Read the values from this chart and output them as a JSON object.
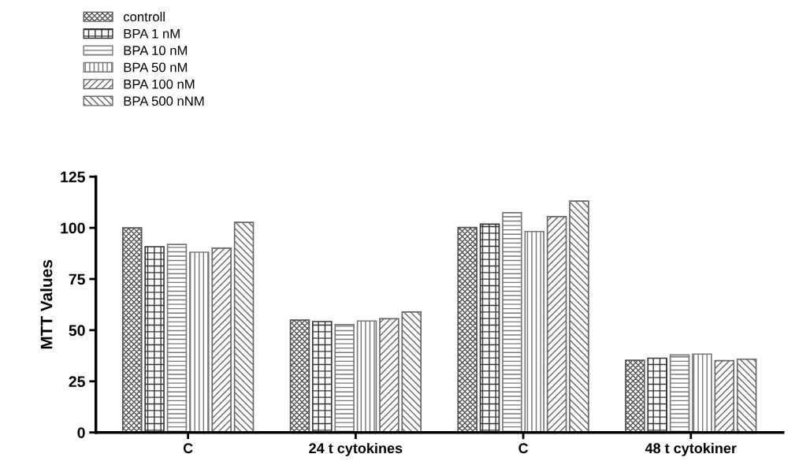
{
  "chart_data": {
    "type": "bar",
    "ylabel": "MTT Values",
    "categories": [
      "C",
      "24 t cytokines",
      "C",
      "48 t cytokiner"
    ],
    "series": [
      {
        "name": "controll",
        "color": "#555555",
        "values": [
          100,
          54.9,
          100.2,
          35.3
        ]
      },
      {
        "name": "BPA 1 nM",
        "color": "#333333",
        "values": [
          90.8,
          54.2,
          101.8,
          36.3
        ]
      },
      {
        "name": "BPA 10 nM",
        "color": "#777777",
        "values": [
          91.9,
          52.7,
          107.4,
          37.9
        ]
      },
      {
        "name": "BPA 50 nM",
        "color": "#777777",
        "values": [
          88.1,
          54.5,
          98.2,
          38.3
        ]
      },
      {
        "name": "BPA 100 nM",
        "color": "#666666",
        "values": [
          90.1,
          55.6,
          105.5,
          35.1
        ]
      },
      {
        "name": "BPA 500 nNM",
        "color": "#666666",
        "values": [
          102.7,
          58.9,
          113.1,
          35.8
        ]
      }
    ],
    "ylim": [
      0,
      125
    ],
    "yticks": [
      0,
      25,
      50,
      75,
      100,
      125
    ],
    "grid": false,
    "legend": "top left"
  }
}
